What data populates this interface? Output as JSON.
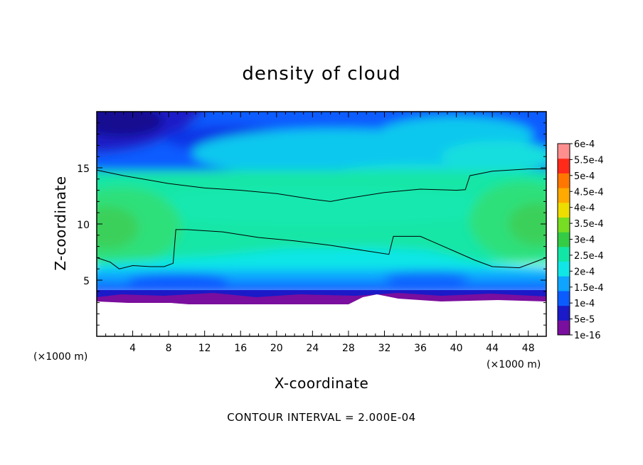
{
  "chart_data": {
    "type": "heatmap",
    "title": "density of cloud",
    "xlabel": "X-coordinate",
    "ylabel": "Z-coordinate",
    "x_unit_label": "(×1000 m)",
    "xlim": [
      0,
      50
    ],
    "ylim": [
      0,
      20
    ],
    "x_ticks": [
      "4",
      "8",
      "12",
      "16",
      "20",
      "24",
      "28",
      "32",
      "36",
      "40",
      "44",
      "48"
    ],
    "y_ticks": [
      "5",
      "10",
      "15"
    ],
    "colorbar_labels": [
      "1e-16",
      "5e-5",
      "1e-4",
      "1.5e-4",
      "2e-4",
      "2.5e-4",
      "3e-4",
      "3.5e-4",
      "4e-4",
      "4.5e-4",
      "5e-4",
      "5.5e-4",
      "6e-4"
    ],
    "colorbar_values": [
      1e-16,
      5e-05,
      0.0001,
      0.00015,
      0.0002,
      0.00025,
      0.0003,
      0.00035,
      0.0004,
      0.00045,
      0.0005,
      0.00055,
      0.0006
    ],
    "colorbar_colors": [
      "#7a0e9e",
      "#1a1ac8",
      "#0b5cff",
      "#0ea4ff",
      "#10e6e6",
      "#12e6a6",
      "#33cc44",
      "#77dd22",
      "#eedd00",
      "#ffaa00",
      "#ff7700",
      "#ff2a1a",
      "#ff8f8f"
    ],
    "contour_interval_text": "CONTOUR INTERVAL = 2.000E-04",
    "contour_level": 0.0002,
    "contour_upper_z": [
      [
        0,
        14.8
      ],
      [
        3,
        14.3
      ],
      [
        8,
        13.6
      ],
      [
        12,
        13.2
      ],
      [
        16,
        13.0
      ],
      [
        20,
        12.7
      ],
      [
        24,
        12.2
      ],
      [
        26,
        12.0
      ],
      [
        28,
        12.3
      ],
      [
        32,
        12.8
      ],
      [
        36,
        13.1
      ],
      [
        40,
        13.0
      ],
      [
        41,
        13.05
      ],
      [
        41.5,
        14.3
      ],
      [
        44,
        14.7
      ],
      [
        48,
        14.9
      ],
      [
        50,
        14.9
      ]
    ],
    "contour_lower_z": [
      [
        0,
        7.0
      ],
      [
        1.5,
        6.6
      ],
      [
        2.5,
        6.0
      ],
      [
        4,
        6.3
      ],
      [
        6,
        6.2
      ],
      [
        7.5,
        6.2
      ],
      [
        8.5,
        6.5
      ],
      [
        8.8,
        9.5
      ],
      [
        10,
        9.5
      ],
      [
        14,
        9.3
      ],
      [
        18,
        8.8
      ],
      [
        22,
        8.5
      ],
      [
        26,
        8.1
      ],
      [
        30,
        7.6
      ],
      [
        32.5,
        7.3
      ],
      [
        33,
        8.9
      ],
      [
        36,
        8.9
      ],
      [
        38,
        8.2
      ],
      [
        40,
        7.5
      ],
      [
        42,
        6.8
      ],
      [
        44,
        6.2
      ],
      [
        47,
        6.1
      ],
      [
        49,
        6.7
      ],
      [
        50,
        7.0
      ]
    ]
  }
}
